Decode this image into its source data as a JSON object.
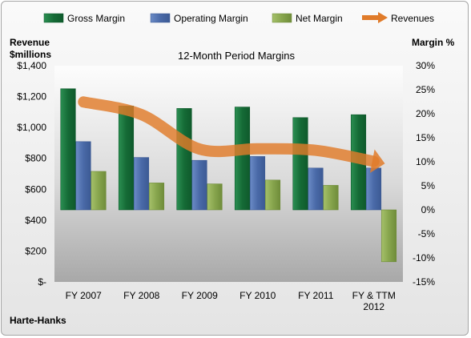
{
  "chart_data": {
    "type": "bar",
    "title": "12-Month Period Margins",
    "company": "Harte-Hanks",
    "categories": [
      "FY 2007",
      "FY 2008",
      "FY 2009",
      "FY 2010",
      "FY 2011",
      "FY & TTM 2012"
    ],
    "left_axis": {
      "label_line1": "Revenue",
      "label_line2": "$millions",
      "min": 0,
      "max": 1400,
      "step": 200,
      "tick_labels": [
        "$-",
        "$200",
        "$400",
        "$600",
        "$800",
        "$1,000",
        "$1,200",
        "$1,400"
      ]
    },
    "right_axis": {
      "label": "Margin %",
      "min": -15,
      "max": 30,
      "step": 5,
      "tick_labels": [
        "-15%",
        "-10%",
        "-5%",
        "0%",
        "5%",
        "10%",
        "15%",
        "20%",
        "25%",
        "30%"
      ]
    },
    "series": [
      {
        "name": "Gross Margin",
        "axis": "right",
        "color": "#1e7b45",
        "values": [
          25.2,
          21.6,
          21.1,
          21.4,
          19.2,
          19.8
        ]
      },
      {
        "name": "Operating Margin",
        "axis": "right",
        "color": "#4f6fad",
        "values": [
          14.2,
          10.9,
          10.3,
          11.1,
          8.7,
          8.7
        ]
      },
      {
        "name": "Net Margin",
        "axis": "right",
        "color": "#8caa52",
        "values": [
          8.0,
          5.6,
          5.4,
          6.2,
          5.1,
          -10.8
        ]
      },
      {
        "name": "Revenues",
        "axis": "left",
        "type": "line",
        "color": "#e07b2a",
        "values": [
          1165,
          1083,
          860,
          862,
          852,
          780
        ]
      }
    ],
    "legend_position": "top",
    "grid": false
  }
}
